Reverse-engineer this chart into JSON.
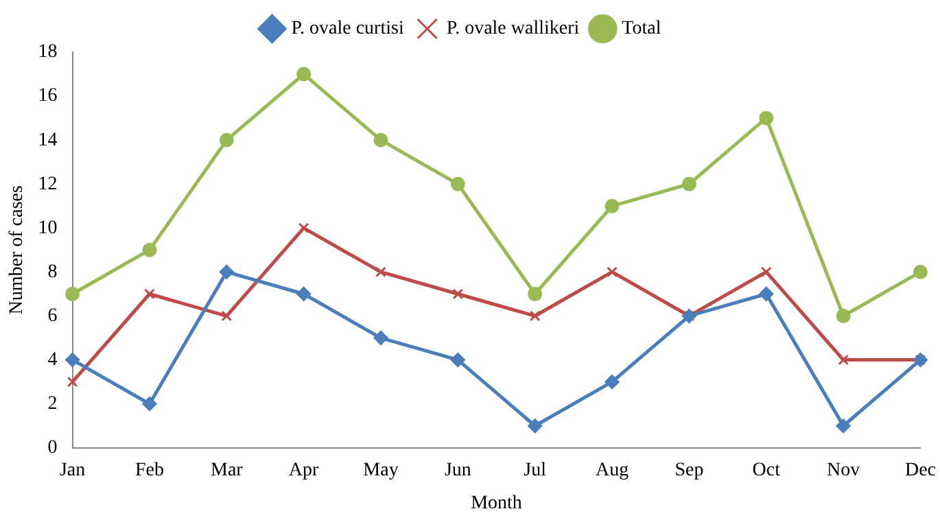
{
  "chart_data": {
    "type": "line",
    "xlabel": "Month",
    "ylabel": "Number of cases",
    "categories": [
      "Jan",
      "Feb",
      "Mar",
      "Apr",
      "May",
      "Jun",
      "Jul",
      "Aug",
      "Sep",
      "Oct",
      "Nov",
      "Dec"
    ],
    "series": [
      {
        "name": "P. ovale curtisi",
        "color": "#4a7ebb",
        "marker": "diamond",
        "values": [
          4,
          2,
          8,
          7,
          5,
          4,
          1,
          3,
          6,
          7,
          1,
          4
        ]
      },
      {
        "name": "P. ovale wallikeri",
        "color": "#be4b48",
        "marker": "cross",
        "values": [
          3,
          7,
          6,
          10,
          8,
          7,
          6,
          8,
          6,
          8,
          4,
          4
        ]
      },
      {
        "name": "Total",
        "color": "#98b954",
        "marker": "circle",
        "values": [
          7,
          9,
          14,
          17,
          14,
          12,
          7,
          11,
          12,
          15,
          6,
          8
        ]
      }
    ],
    "ylim": [
      0,
      18
    ],
    "yticks": [
      0,
      2,
      4,
      6,
      8,
      10,
      12,
      14,
      16,
      18
    ],
    "grid": false,
    "legend": "top",
    "line_style": "solid"
  }
}
